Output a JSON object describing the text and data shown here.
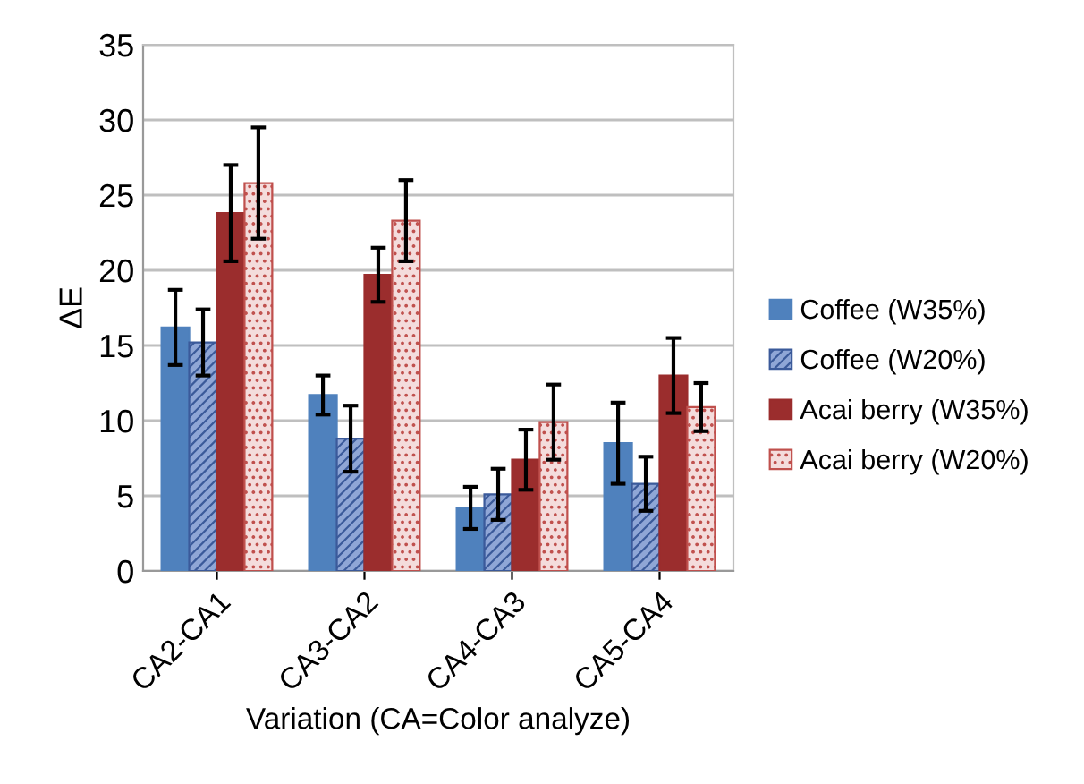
{
  "chart_data": {
    "type": "bar",
    "xlabel": "Variation (CA=Color analyze)",
    "ylabel": "ΔE",
    "categories": [
      "CA2-CA1",
      "CA3-CA2",
      "CA4-CA3",
      "CA5-CA4"
    ],
    "series": [
      {
        "name": "Coffee (W35%)",
        "color": "#4f81bd",
        "values": [
          16.2,
          11.7,
          4.2,
          8.5
        ],
        "errors": [
          2.5,
          1.3,
          1.4,
          2.7
        ]
      },
      {
        "name": "Coffee (W20%)",
        "color": "#3b5a9a",
        "values": [
          15.2,
          8.8,
          5.1,
          5.8
        ],
        "errors": [
          2.2,
          2.2,
          1.7,
          1.8
        ]
      },
      {
        "name": "Acai berry (W35%)",
        "color": "#9b2d2d",
        "values": [
          23.8,
          19.7,
          7.4,
          13.0
        ],
        "errors": [
          3.2,
          1.8,
          2.0,
          2.5
        ]
      },
      {
        "name": "Acai berry (W20%)",
        "color": "#c0504d",
        "values": [
          25.8,
          23.3,
          9.9,
          10.9
        ],
        "errors": [
          3.7,
          2.7,
          2.5,
          1.6
        ]
      }
    ],
    "ylim": [
      0,
      35
    ],
    "yticks": [
      0,
      5,
      10,
      15,
      20,
      25,
      30,
      35
    ],
    "grid": "y",
    "legend": "right"
  }
}
